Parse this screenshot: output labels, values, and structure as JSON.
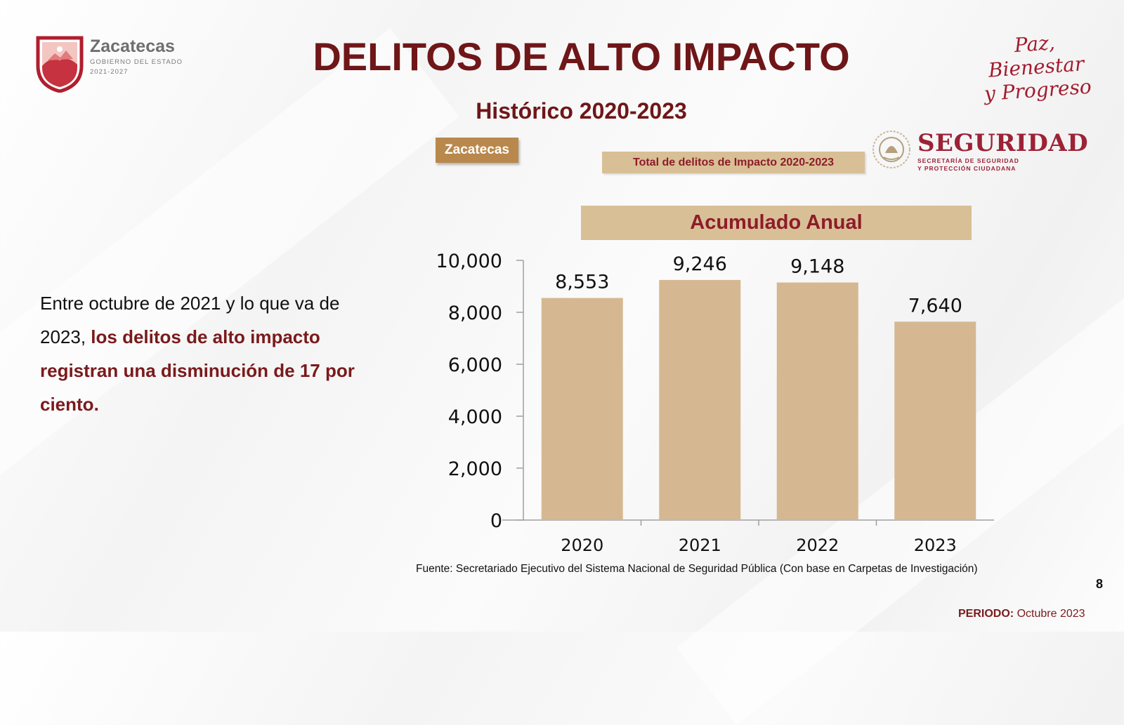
{
  "header": {
    "title": "DELITOS DE ALTO IMPACTO",
    "subtitle": "Histórico 2020-2023"
  },
  "logos": {
    "state_name": "Zacatecas",
    "state_sub": "GOBIERNO DEL ESTADO",
    "state_years": "2021-2027",
    "slogan_line1": "Paz, Bienestar",
    "slogan_line2": "y Progreso",
    "security_word": "SEGURIDAD",
    "security_sub1": "SECRETARÍA DE SEGURIDAD",
    "security_sub2": "Y PROTECCIÓN CIUDADANA"
  },
  "tags": {
    "state": "Zacatecas",
    "total": "Total de delitos de Impacto 2020-2023"
  },
  "body": {
    "text_plain": "Entre octubre de 2021 y lo que va de 2023, ",
    "text_highlight": "los delitos de alto impacto registran una disminución de 17 por ciento."
  },
  "footer": {
    "source": "Fuente: Secretariado Ejecutivo del Sistema Nacional de Seguridad Pública (Con base en Carpetas de Investigación)",
    "page_number": "8",
    "period_label": "PERIODO:",
    "period_value": "Octubre 2023"
  },
  "colors": {
    "bar": "#d5b891",
    "title": "#6f1618",
    "accent": "#8d1c2a"
  },
  "chart_data": {
    "type": "bar",
    "title": "Acumulado Anual",
    "categories": [
      "2020",
      "2021",
      "2022",
      "2023"
    ],
    "values": [
      8553,
      9246,
      9148,
      7640
    ],
    "data_labels": [
      "8,553",
      "9,246",
      "9,148",
      "7,640"
    ],
    "ylim": [
      0,
      10000
    ],
    "yticks": [
      0,
      2000,
      4000,
      6000,
      8000,
      10000
    ],
    "ytick_labels": [
      "0",
      "2,000",
      "4,000",
      "6,000",
      "8,000",
      "10,000"
    ],
    "grid": false,
    "legend": "none"
  }
}
